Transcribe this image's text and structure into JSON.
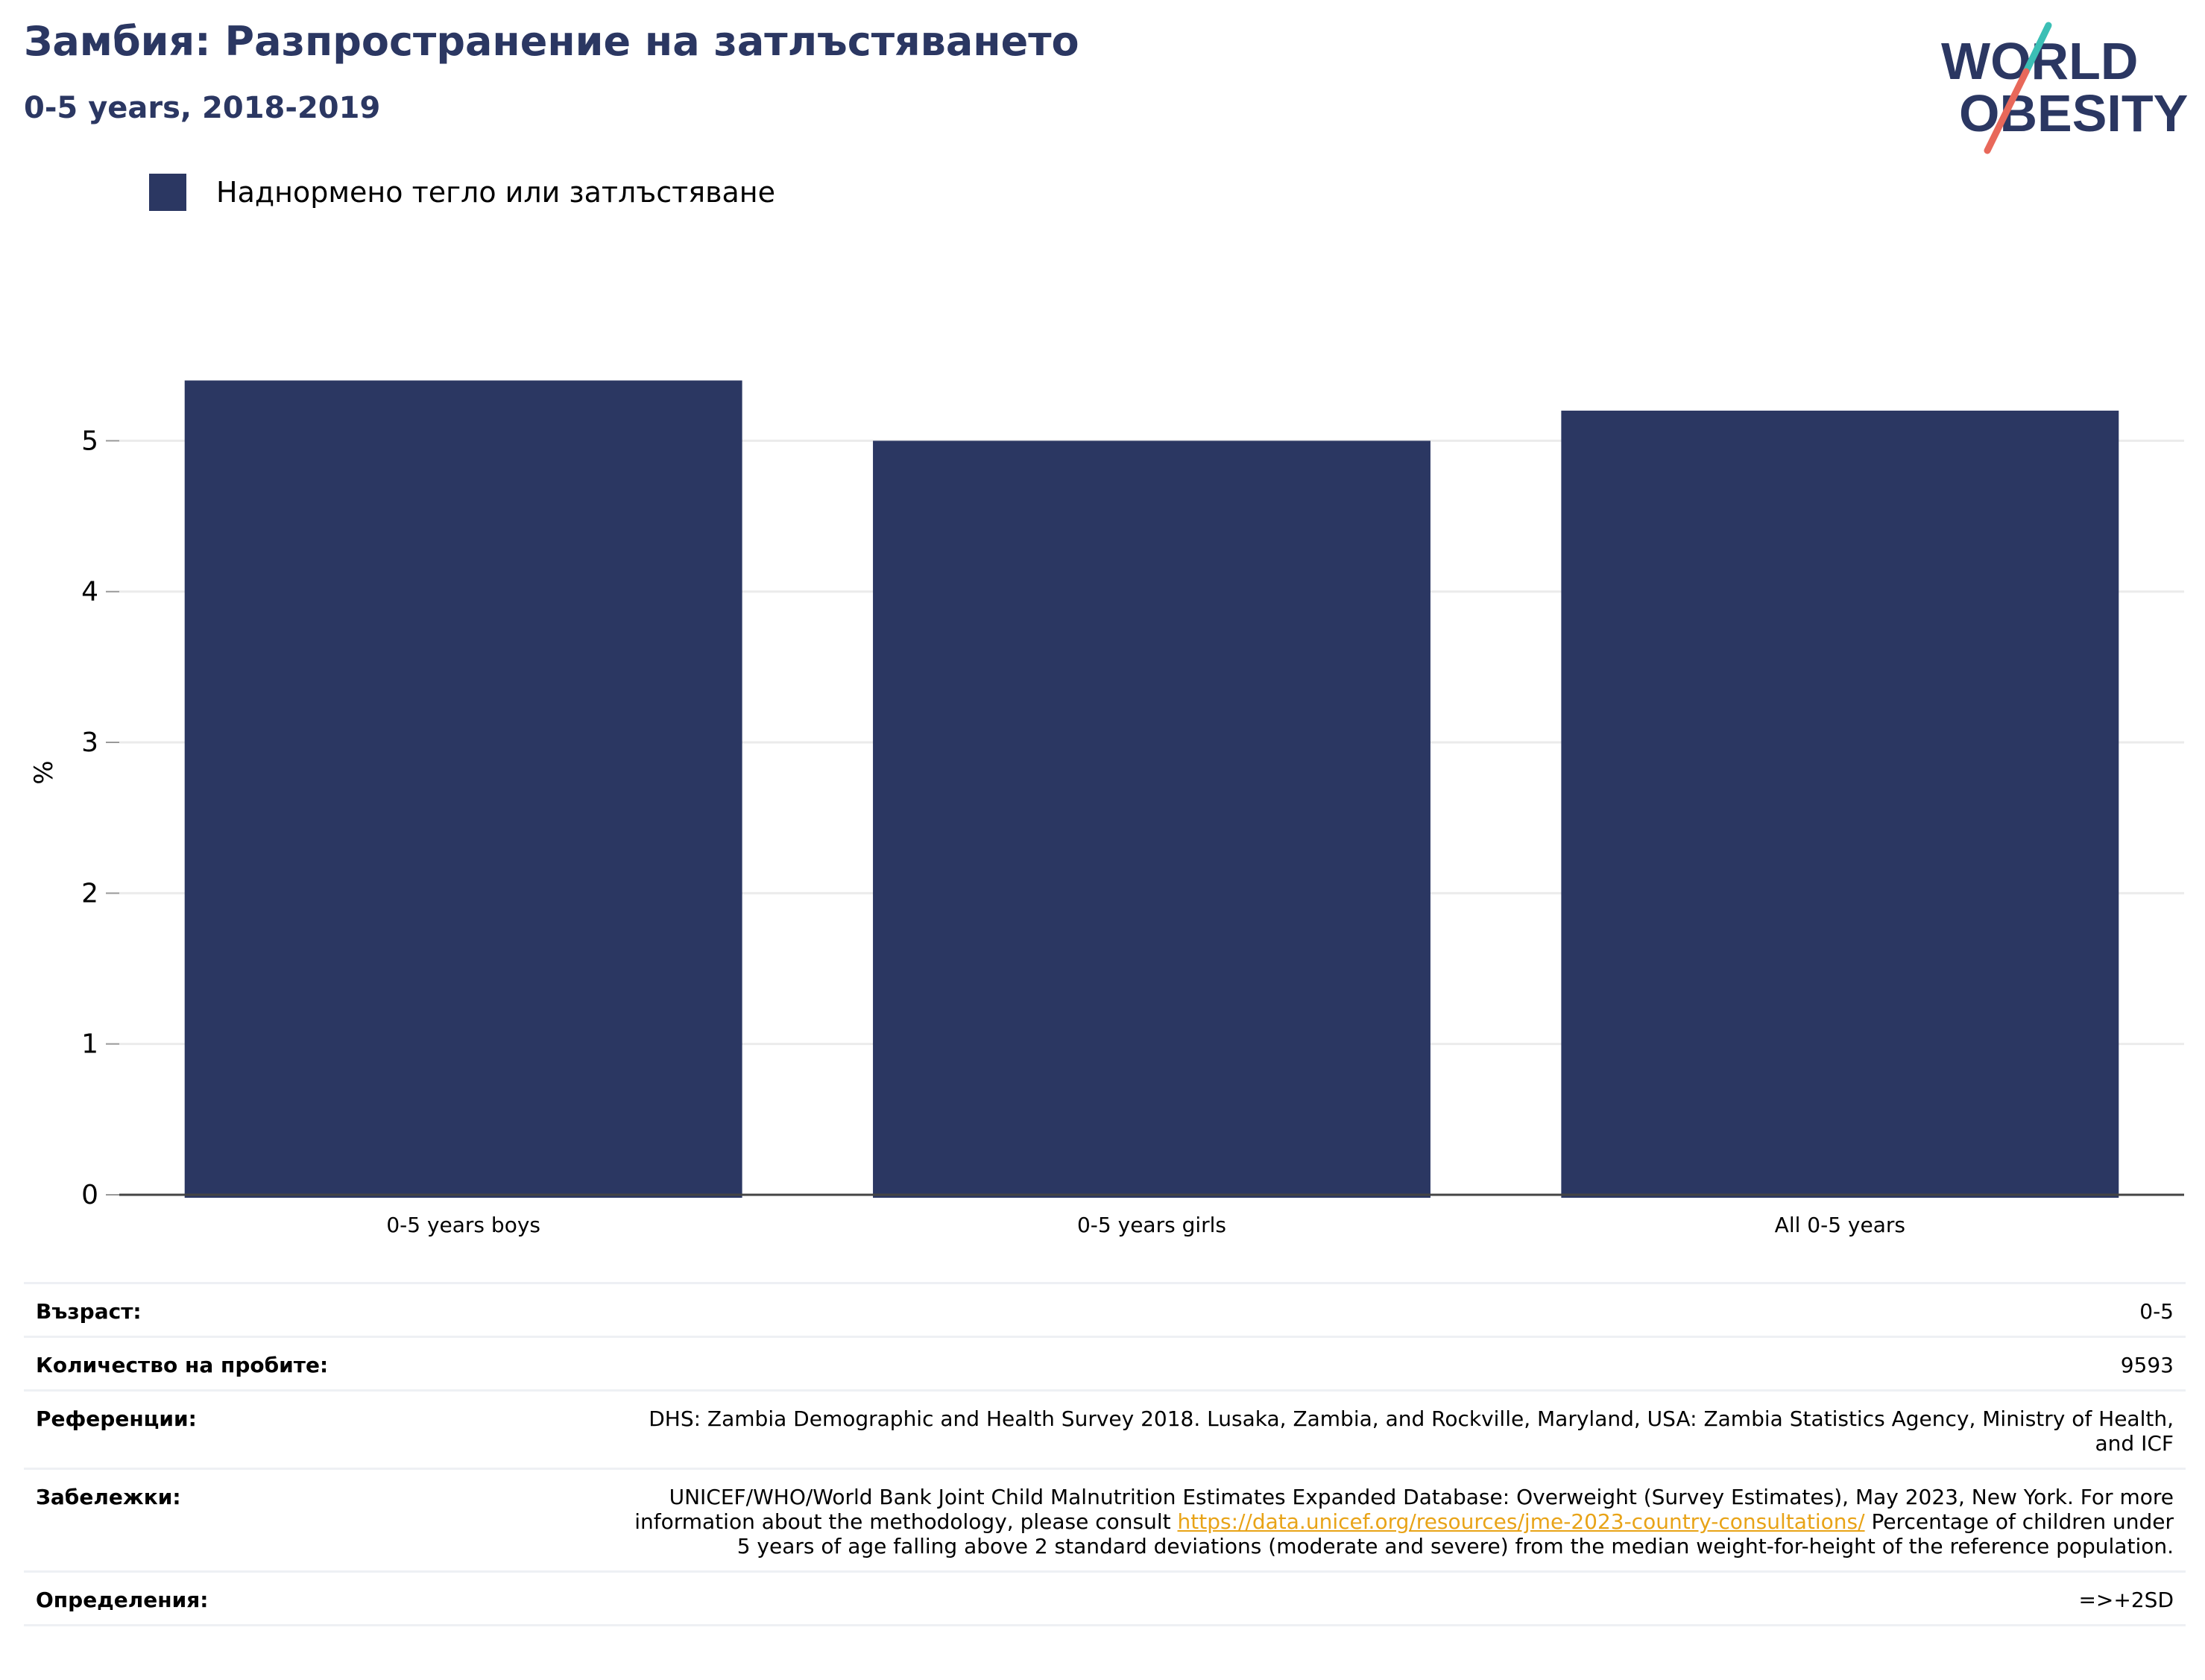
{
  "header": {
    "title": "Замбия: Разпространение на затлъстяването",
    "subtitle": "0-5 years, 2018-2019"
  },
  "logo": {
    "line1": "WORLD",
    "line2": "OBESITY",
    "colors": {
      "text": "#2b3762",
      "slash_top": "#3bbfb5",
      "slash_bottom": "#e8685a"
    }
  },
  "legend": {
    "items": [
      {
        "label": "Наднормено тегло или затлъстяване",
        "color": "#2b3762"
      }
    ]
  },
  "chart_data": {
    "type": "bar",
    "categories": [
      "0-5 years boys",
      "0-5 years girls",
      "All 0-5 years"
    ],
    "series": [
      {
        "name": "Наднормено тегло или затлъстяване",
        "values": [
          5.4,
          5.0,
          5.2
        ],
        "color": "#2b3762"
      }
    ],
    "title": "Замбия: Разпространение на затлъстяването",
    "subtitle": "0-5 years, 2018-2019",
    "xlabel": "",
    "ylabel": "%",
    "ylim": [
      0,
      5.6
    ],
    "yticks": [
      0,
      1,
      2,
      3,
      4,
      5
    ],
    "grid": true,
    "legend_position": "top-left"
  },
  "info": {
    "age": {
      "label": "Възраст:",
      "value": "0-5"
    },
    "sample": {
      "label": "Количество на пробите:",
      "value": "9593"
    },
    "references": {
      "label": "Референции:",
      "value": "DHS: Zambia Demographic and Health Survey 2018. Lusaka, Zambia, and Rockville, Maryland, USA: Zambia Statistics Agency, Ministry of Health, and ICF"
    },
    "notes": {
      "label": "Забележки:",
      "value_before": "UNICEF/WHO/World Bank Joint Child Malnutrition Estimates Expanded Database: Overweight (Survey Estimates), May 2023, New York. For more information about the methodology, please consult ",
      "link": "https://data.unicef.org/resources/jme-2023-country-consultations/",
      "value_after": " Percentage of children under 5 years of age falling above 2 standard deviations (moderate and severe) from the median weight-for-height of the reference population."
    },
    "definitions": {
      "label": "Определения:",
      "value": "=>+2SD"
    }
  }
}
